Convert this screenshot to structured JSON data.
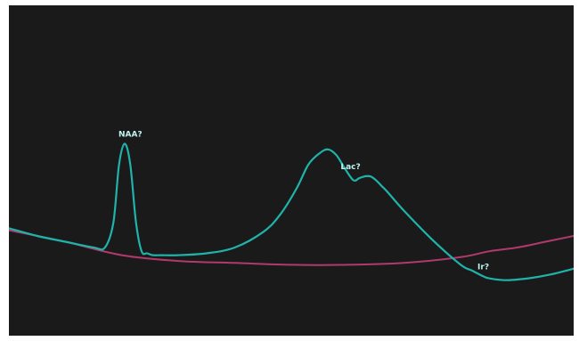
{
  "chart_data": {
    "type": "line",
    "title": "",
    "xlabel": "",
    "ylabel": "",
    "xlim": [
      0,
      100
    ],
    "ylim": [
      0,
      100
    ],
    "grid": false,
    "legend": "none",
    "background": "#1a1a1a",
    "series": [
      {
        "color": "#1fb3aa",
        "x": [
          0,
          5,
          10,
          15,
          17,
          18.5,
          19.5,
          20.5,
          21.5,
          22.5,
          23.5,
          24.5,
          25.5,
          27,
          30,
          35,
          40,
          45,
          48,
          51,
          53,
          55,
          56.5,
          58,
          59.5,
          61,
          62,
          63,
          64,
          65,
          66,
          67,
          70,
          75,
          80,
          82,
          84,
          85,
          88,
          92,
          96,
          100
        ],
        "y": [
          35,
          31,
          28,
          25,
          25,
          38,
          68,
          79,
          68,
          38,
          23,
          22,
          21,
          21,
          21,
          22,
          25,
          33,
          42,
          56,
          68,
          74,
          76,
          73,
          66,
          60,
          61,
          62,
          62,
          60,
          57,
          54,
          44,
          29,
          16,
          13,
          10,
          9,
          8,
          9,
          11,
          14
        ]
      },
      {
        "color": "#b03a6b",
        "x": [
          0,
          10,
          20,
          30,
          40,
          50,
          60,
          70,
          80,
          85,
          90,
          95,
          100
        ],
        "y": [
          34,
          28,
          21,
          18,
          17,
          16,
          16,
          17,
          20,
          23,
          25,
          28,
          31
        ]
      }
    ],
    "annotations": [
      {
        "text": "NAA?",
        "x": 21.5,
        "y": 79
      },
      {
        "text": "Lac?",
        "x": 60.5,
        "y": 62
      },
      {
        "text": "Ir?",
        "x": 84,
        "y": 10
      }
    ]
  }
}
